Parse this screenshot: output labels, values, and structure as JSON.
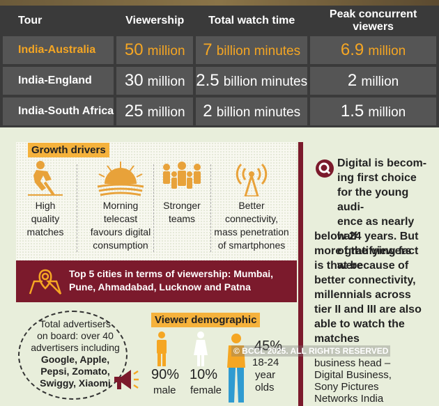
{
  "tour_table": {
    "headers": [
      "Tour",
      "Viewership",
      "Total watch time",
      "Peak concurrent viewers"
    ],
    "rows": [
      {
        "tour": "India-Australia",
        "viewership_num": "50",
        "viewership_unit": "million",
        "watch_num": "7",
        "watch_unit": "billion minutes",
        "peak_num": "6.9",
        "peak_unit": "million",
        "highlight": true
      },
      {
        "tour": "India-England",
        "viewership_num": "30",
        "viewership_unit": "million",
        "watch_num": "2.5",
        "watch_unit": "billion minutes",
        "peak_num": "2",
        "peak_unit": "million",
        "highlight": false
      },
      {
        "tour": "India-South Africa",
        "viewership_num": "25",
        "viewership_unit": "million",
        "watch_num": "2",
        "watch_unit": "billion minutes",
        "peak_num": "1.5",
        "peak_unit": "million",
        "highlight": false
      }
    ]
  },
  "growth_drivers": {
    "label": "Growth drivers",
    "items": [
      {
        "icon": "cricket-player-icon",
        "lines": [
          "High",
          "quality",
          "matches"
        ]
      },
      {
        "icon": "sunrise-icon",
        "lines": [
          "Morning",
          "telecast",
          "favours digital",
          "consumption"
        ]
      },
      {
        "icon": "group-people-icon",
        "lines": [
          "Stronger",
          "teams"
        ]
      },
      {
        "icon": "signal-tower-icon",
        "lines": [
          "Better",
          "connectivity,",
          "mass penetration",
          "of smartphones"
        ]
      }
    ]
  },
  "cities": {
    "line1": "Top 5 cities in terms of viewership: Mumbai,",
    "line2": "Pune, Ahmadabad, Lucknow and Patna"
  },
  "advertisers": {
    "lines": [
      "Total advertisers",
      "on board: over 40",
      "advertisers including"
    ],
    "brands": [
      "Google, Apple,",
      "Pepsi, Zomato,",
      "Swiggy, Xiaomi"
    ]
  },
  "demographic": {
    "label": "Viewer demographic",
    "male_pct": "90%",
    "male_label": "male",
    "female_pct": "10%",
    "female_label": "female",
    "age_pct": "45%",
    "age_lines": [
      "18-24",
      "year",
      "olds"
    ]
  },
  "quote": {
    "first_lines": [
      "Digital is becom-",
      "ing first choice",
      "for the young audi-",
      "ence as nearly half",
      "of the viewers were"
    ],
    "rest_lines": [
      "below 24 years. But",
      "more gratifying fact",
      "is that because of",
      "better connectivity,",
      "millennials across",
      "tier II and III are also",
      "able to watch the",
      "matches"
    ],
    "attribution": [
      "business head –",
      "Digital Business,",
      "Sony Pictures",
      "Networks India"
    ]
  },
  "watermark": "© BCCL 2025. ALL RIGHTS RESERVED",
  "colors": {
    "accent": "#f5a623",
    "maroon": "#7b1a2c",
    "label_bg": "#f5b23c",
    "table_cell": "#555555"
  }
}
